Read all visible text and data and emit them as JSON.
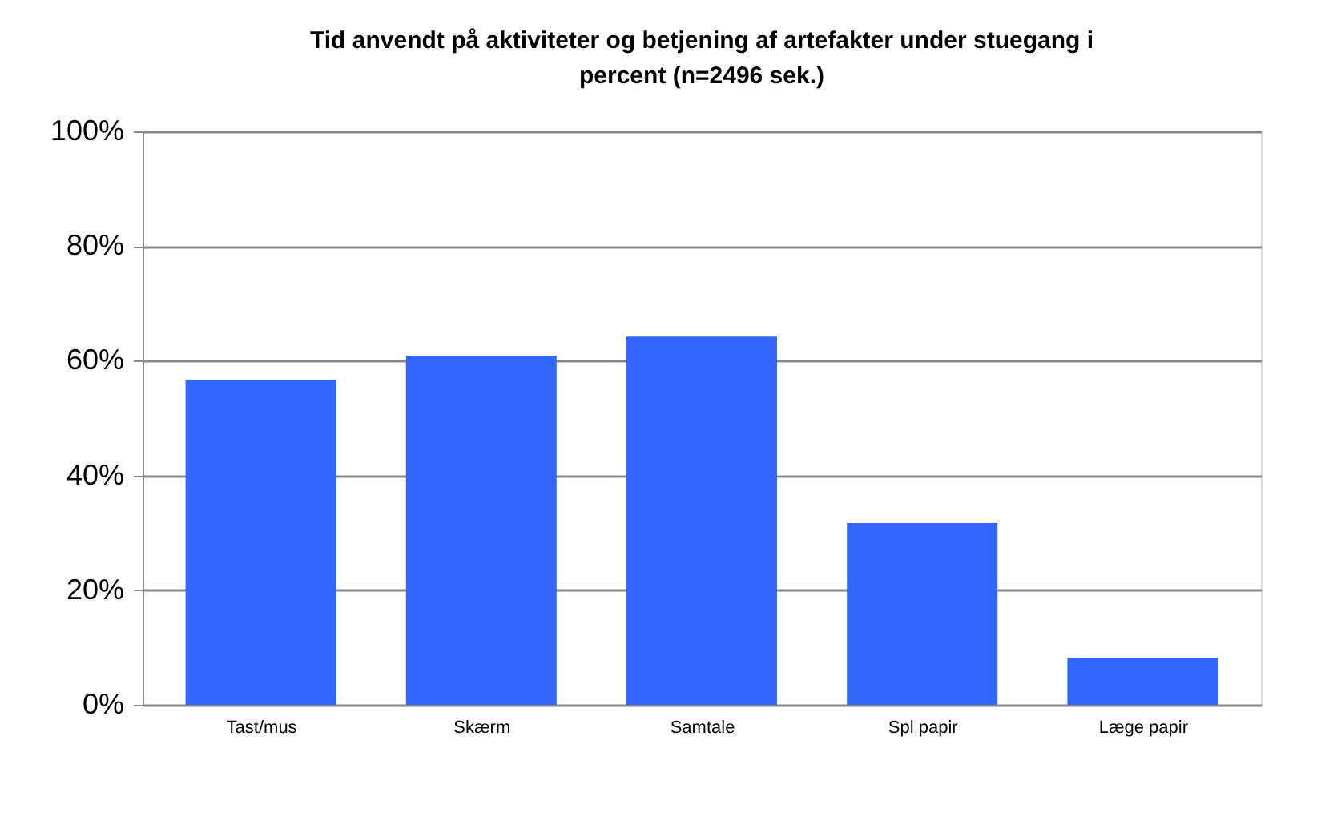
{
  "chart_data": {
    "type": "bar",
    "title": [
      "Tid anvendt på aktiviteter og betjening af artefakter under stuegang i",
      "percent (n=2496 sek.)"
    ],
    "categories": [
      "Tast/mus",
      "Skærm",
      "Samtale",
      "Spl papir",
      "Læge papir"
    ],
    "values": [
      56.7,
      60.9,
      64.2,
      31.7,
      8.2
    ],
    "color": "#3366ff",
    "ylim": [
      0,
      100
    ],
    "yticks": [
      {
        "value": 0,
        "label": "0%"
      },
      {
        "value": 20,
        "label": "20%"
      },
      {
        "value": 40,
        "label": "40%"
      },
      {
        "value": 60,
        "label": "60%"
      },
      {
        "value": 80,
        "label": "80%"
      },
      {
        "value": 100,
        "label": "100%"
      }
    ],
    "grid": "y"
  }
}
